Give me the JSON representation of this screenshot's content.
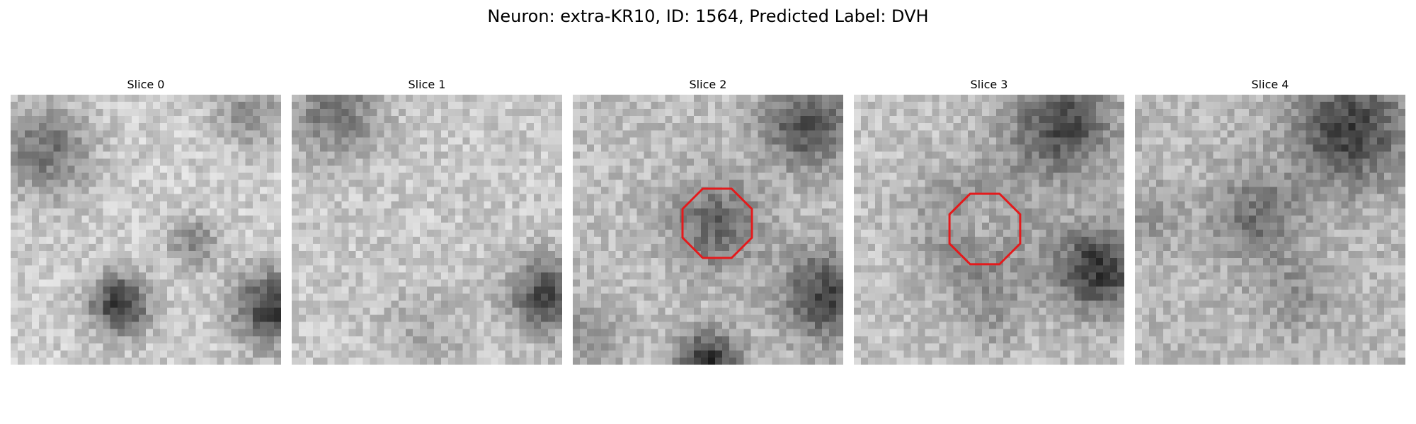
{
  "figure": {
    "title": "Neuron: extra-KR10, ID: 1564, Predicted Label: DVH"
  },
  "panels": [
    {
      "title": "Slice 0",
      "roi": false
    },
    {
      "title": "Slice 1",
      "roi": false
    },
    {
      "title": "Slice 2",
      "roi": true
    },
    {
      "title": "Slice 3",
      "roi": true
    },
    {
      "title": "Slice 4",
      "roi": false
    }
  ],
  "style": {
    "roi_color": "#e41a1c",
    "colormap": "grayscale"
  }
}
